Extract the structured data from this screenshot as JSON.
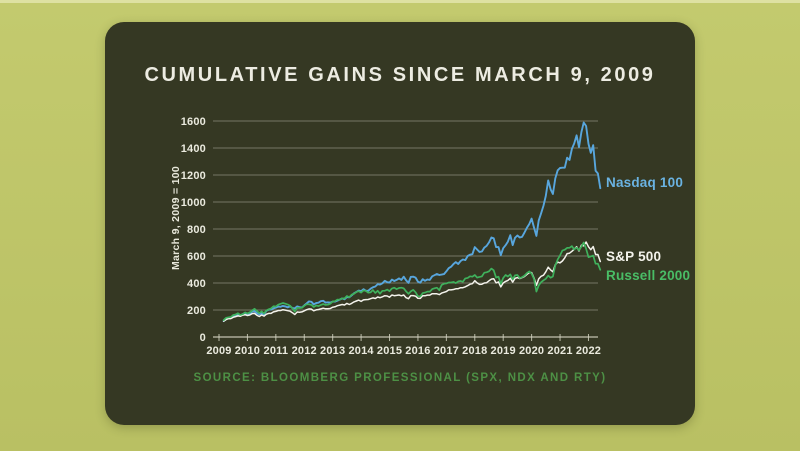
{
  "theme": {
    "page_bg": "#bfc669",
    "card_bg": "#353823",
    "grid_color": "#b5b5a4",
    "axis_color": "#d2d2c0",
    "tick_label_color": "#eaeade",
    "title_color": "#edece2"
  },
  "chart_data": {
    "type": "line",
    "title": "CUMULATIVE GAINS SINCE MARCH 9, 2009",
    "ylabel": "March 9, 2009 = 100",
    "xlabel": "",
    "source": "SOURCE: BLOOMBERG PROFESSIONAL (SPX, NDX AND RTY)",
    "source_color": "#4d9045",
    "ylim": [
      0,
      1600
    ],
    "yticks": [
      0,
      200,
      400,
      600,
      800,
      1000,
      1200,
      1400,
      1600
    ],
    "xticks": [
      2009,
      2010,
      2011,
      2012,
      2013,
      2014,
      2015,
      2016,
      2017,
      2018,
      2019,
      2020,
      2021,
      2022
    ],
    "grid": "horizontal",
    "legend_position": "right-of-lines",
    "x_start": 2009.1667,
    "x_step": 0.083333,
    "x_unit": "year (monthly samples, Mar 2009 - Jun 2022)",
    "series": [
      {
        "name": "Nasdaq 100",
        "color": "#58a6dd",
        "label_color": "#6ab3e2",
        "values": [
          118,
          134,
          138,
          142,
          154,
          155,
          164,
          160,
          170,
          178,
          169,
          172,
          188,
          192,
          176,
          168,
          177,
          169,
          194,
          203,
          203,
          212,
          218,
          225,
          224,
          230,
          227,
          220,
          227,
          215,
          212,
          227,
          221,
          218,
          234,
          248,
          264,
          261,
          242,
          251,
          254,
          265,
          268,
          255,
          257,
          255,
          262,
          262,
          270,
          277,
          286,
          279,
          296,
          294,
          308,
          324,
          334,
          344,
          339,
          354,
          342,
          342,
          358,
          368,
          374,
          391,
          388,
          398,
          416,
          406,
          403,
          425,
          415,
          423,
          434,
          423,
          447,
          420,
          401,
          445,
          447,
          440,
          410,
          402,
          428,
          416,
          426,
          423,
          450,
          458,
          467,
          459,
          462,
          466,
          487,
          510,
          521,
          541,
          555,
          541,
          563,
          574,
          570,
          600,
          610,
          613,
          666,
          648,
          630,
          633,
          662,
          675,
          701,
          737,
          731,
          666,
          666,
          606,
          658,
          680,
          707,
          754,
          681,
          735,
          752,
          737,
          742,
          774,
          809,
          837,
          877,
          811,
          749,
          862,
          916,
          973,
          1045,
          1160,
          1094,
          1059,
          1175,
          1235,
          1252,
          1254,
          1254,
          1328,
          1311,
          1394,
          1433,
          1493,
          1407,
          1518,
          1588,
          1563,
          1430,
          1364,
          1421,
          1231,
          1211,
          1102
        ]
      },
      {
        "name": "S&P 500",
        "color": "#f4f3ec",
        "label_color": "#f4f3ec",
        "values": [
          118,
          129,
          136,
          136,
          146,
          151,
          156,
          153,
          162,
          165,
          159,
          163,
          173,
          175,
          161,
          152,
          163,
          155,
          169,
          175,
          175,
          186,
          190,
          196,
          196,
          202,
          199,
          195,
          191,
          180,
          167,
          185,
          184,
          186,
          194,
          202,
          208,
          207,
          194,
          201,
          204,
          208,
          213,
          209,
          209,
          211,
          221,
          224,
          232,
          236,
          241,
          237,
          249,
          241,
          249,
          260,
          267,
          273,
          264,
          275,
          277,
          278,
          284,
          290,
          285,
          296,
          291,
          298,
          306,
          304,
          295,
          311,
          306,
          308,
          311,
          305,
          311,
          291,
          284,
          307,
          307,
          302,
          287,
          286,
          305,
          305,
          310,
          310,
          321,
          321,
          320,
          314,
          325,
          331,
          337,
          349,
          349,
          352,
          357,
          358,
          365,
          365,
          372,
          381,
          391,
          395,
          417,
          401,
          390,
          391,
          400,
          402,
          416,
          429,
          431,
          401,
          408,
          371,
          400,
          412,
          419,
          435,
          407,
          435,
          440,
          433,
          440,
          449,
          464,
          478,
          477,
          437,
          382,
          430,
          450,
          458,
          483,
          517,
          497,
          483,
          535,
          555,
          549,
          563,
          587,
          618,
          621,
          635,
          650,
          669,
          637,
          681,
          675,
          704,
          668,
          647,
          670,
          611,
          611,
          559
        ]
      },
      {
        "name": "Russell 2000",
        "color": "#3fb15c",
        "label_color": "#49bd66",
        "values": [
          125,
          142,
          146,
          148,
          162,
          167,
          176,
          164,
          169,
          182,
          175,
          183,
          198,
          209,
          193,
          177,
          190,
          175,
          197,
          205,
          212,
          228,
          226,
          239,
          246,
          252,
          247,
          241,
          232,
          212,
          188,
          216,
          215,
          216,
          231,
          242,
          242,
          238,
          222,
          233,
          229,
          237,
          244,
          238,
          239,
          247,
          263,
          265,
          277,
          276,
          287,
          285,
          304,
          295,
          313,
          320,
          333,
          339,
          329,
          345,
          342,
          328,
          330,
          348,
          326,
          342,
          321,
          342,
          342,
          351,
          339,
          359,
          365,
          355,
          363,
          365,
          361,
          338,
          320,
          338,
          349,
          331,
          302,
          301,
          325,
          329,
          336,
          336,
          355,
          361,
          365,
          347,
          385,
          395,
          397,
          404,
          404,
          408,
          399,
          412,
          415,
          409,
          434,
          438,
          450,
          447,
          459,
          440,
          445,
          449,
          476,
          479,
          487,
          507,
          494,
          440,
          447,
          393,
          437,
          459,
          448,
          464,
          427,
          456,
          459,
          436,
          444,
          455,
          473,
          486,
          470,
          430,
          336,
          382,
          406,
          420,
          431,
          455,
          439,
          448,
          530,
          575,
          604,
          641,
          647,
          660,
          661,
          673,
          648,
          662,
          642,
          669,
          700,
          654,
          591,
          597,
          603,
          543,
          543,
          498
        ]
      }
    ]
  }
}
